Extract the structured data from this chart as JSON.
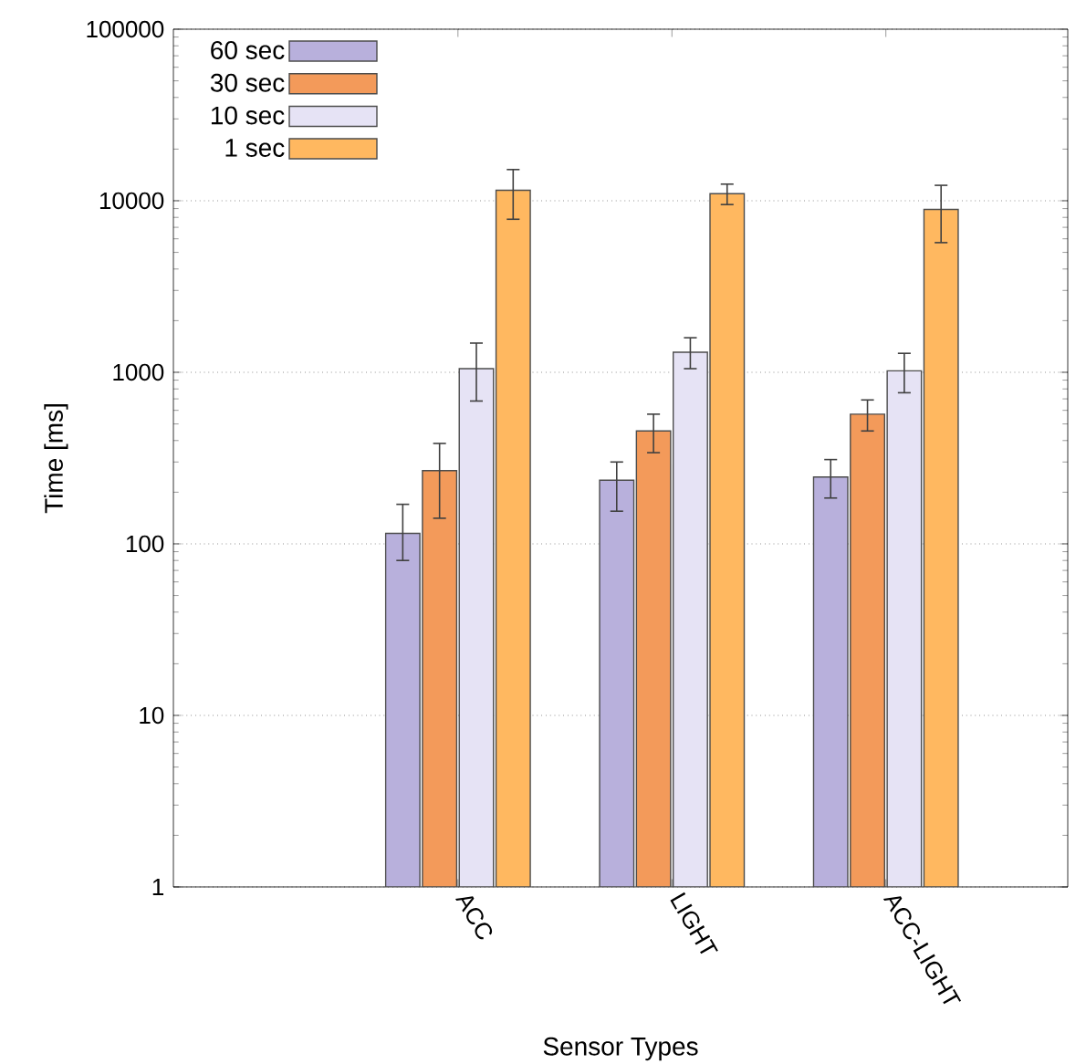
{
  "chart_data": {
    "type": "bar",
    "xlabel": "Sensor Types",
    "ylabel": "Time [ms]",
    "categories": [
      "ACC",
      "LIGHT",
      "ACC-LIGHT"
    ],
    "series": [
      {
        "name": "60 sec",
        "color": "#b8b0dc",
        "values": [
          115,
          235,
          245
        ],
        "errors": [
          [
            80,
            170
          ],
          [
            155,
            300
          ],
          [
            185,
            310
          ]
        ]
      },
      {
        "name": "30 sec",
        "color": "#f39a5a",
        "values": [
          267,
          455,
          570
        ],
        "errors": [
          [
            141,
            385
          ],
          [
            340,
            570
          ],
          [
            455,
            690
          ]
        ]
      },
      {
        "name": "10 sec",
        "color": "#e6e3f5",
        "values": [
          1050,
          1310,
          1020
        ],
        "errors": [
          [
            680,
            1480
          ],
          [
            1050,
            1590
          ],
          [
            760,
            1290
          ]
        ]
      },
      {
        "name": "1 sec",
        "color": "#ffb860",
        "values": [
          11500,
          11000,
          8900
        ],
        "errors": [
          [
            7800,
            15200
          ],
          [
            9500,
            12500
          ],
          [
            5700,
            12300
          ]
        ]
      }
    ],
    "log": "y",
    "ylim": [
      1,
      100000
    ],
    "yticks": [
      1,
      10,
      100,
      1000,
      10000,
      100000
    ],
    "grid": "y",
    "legend": "top left"
  }
}
